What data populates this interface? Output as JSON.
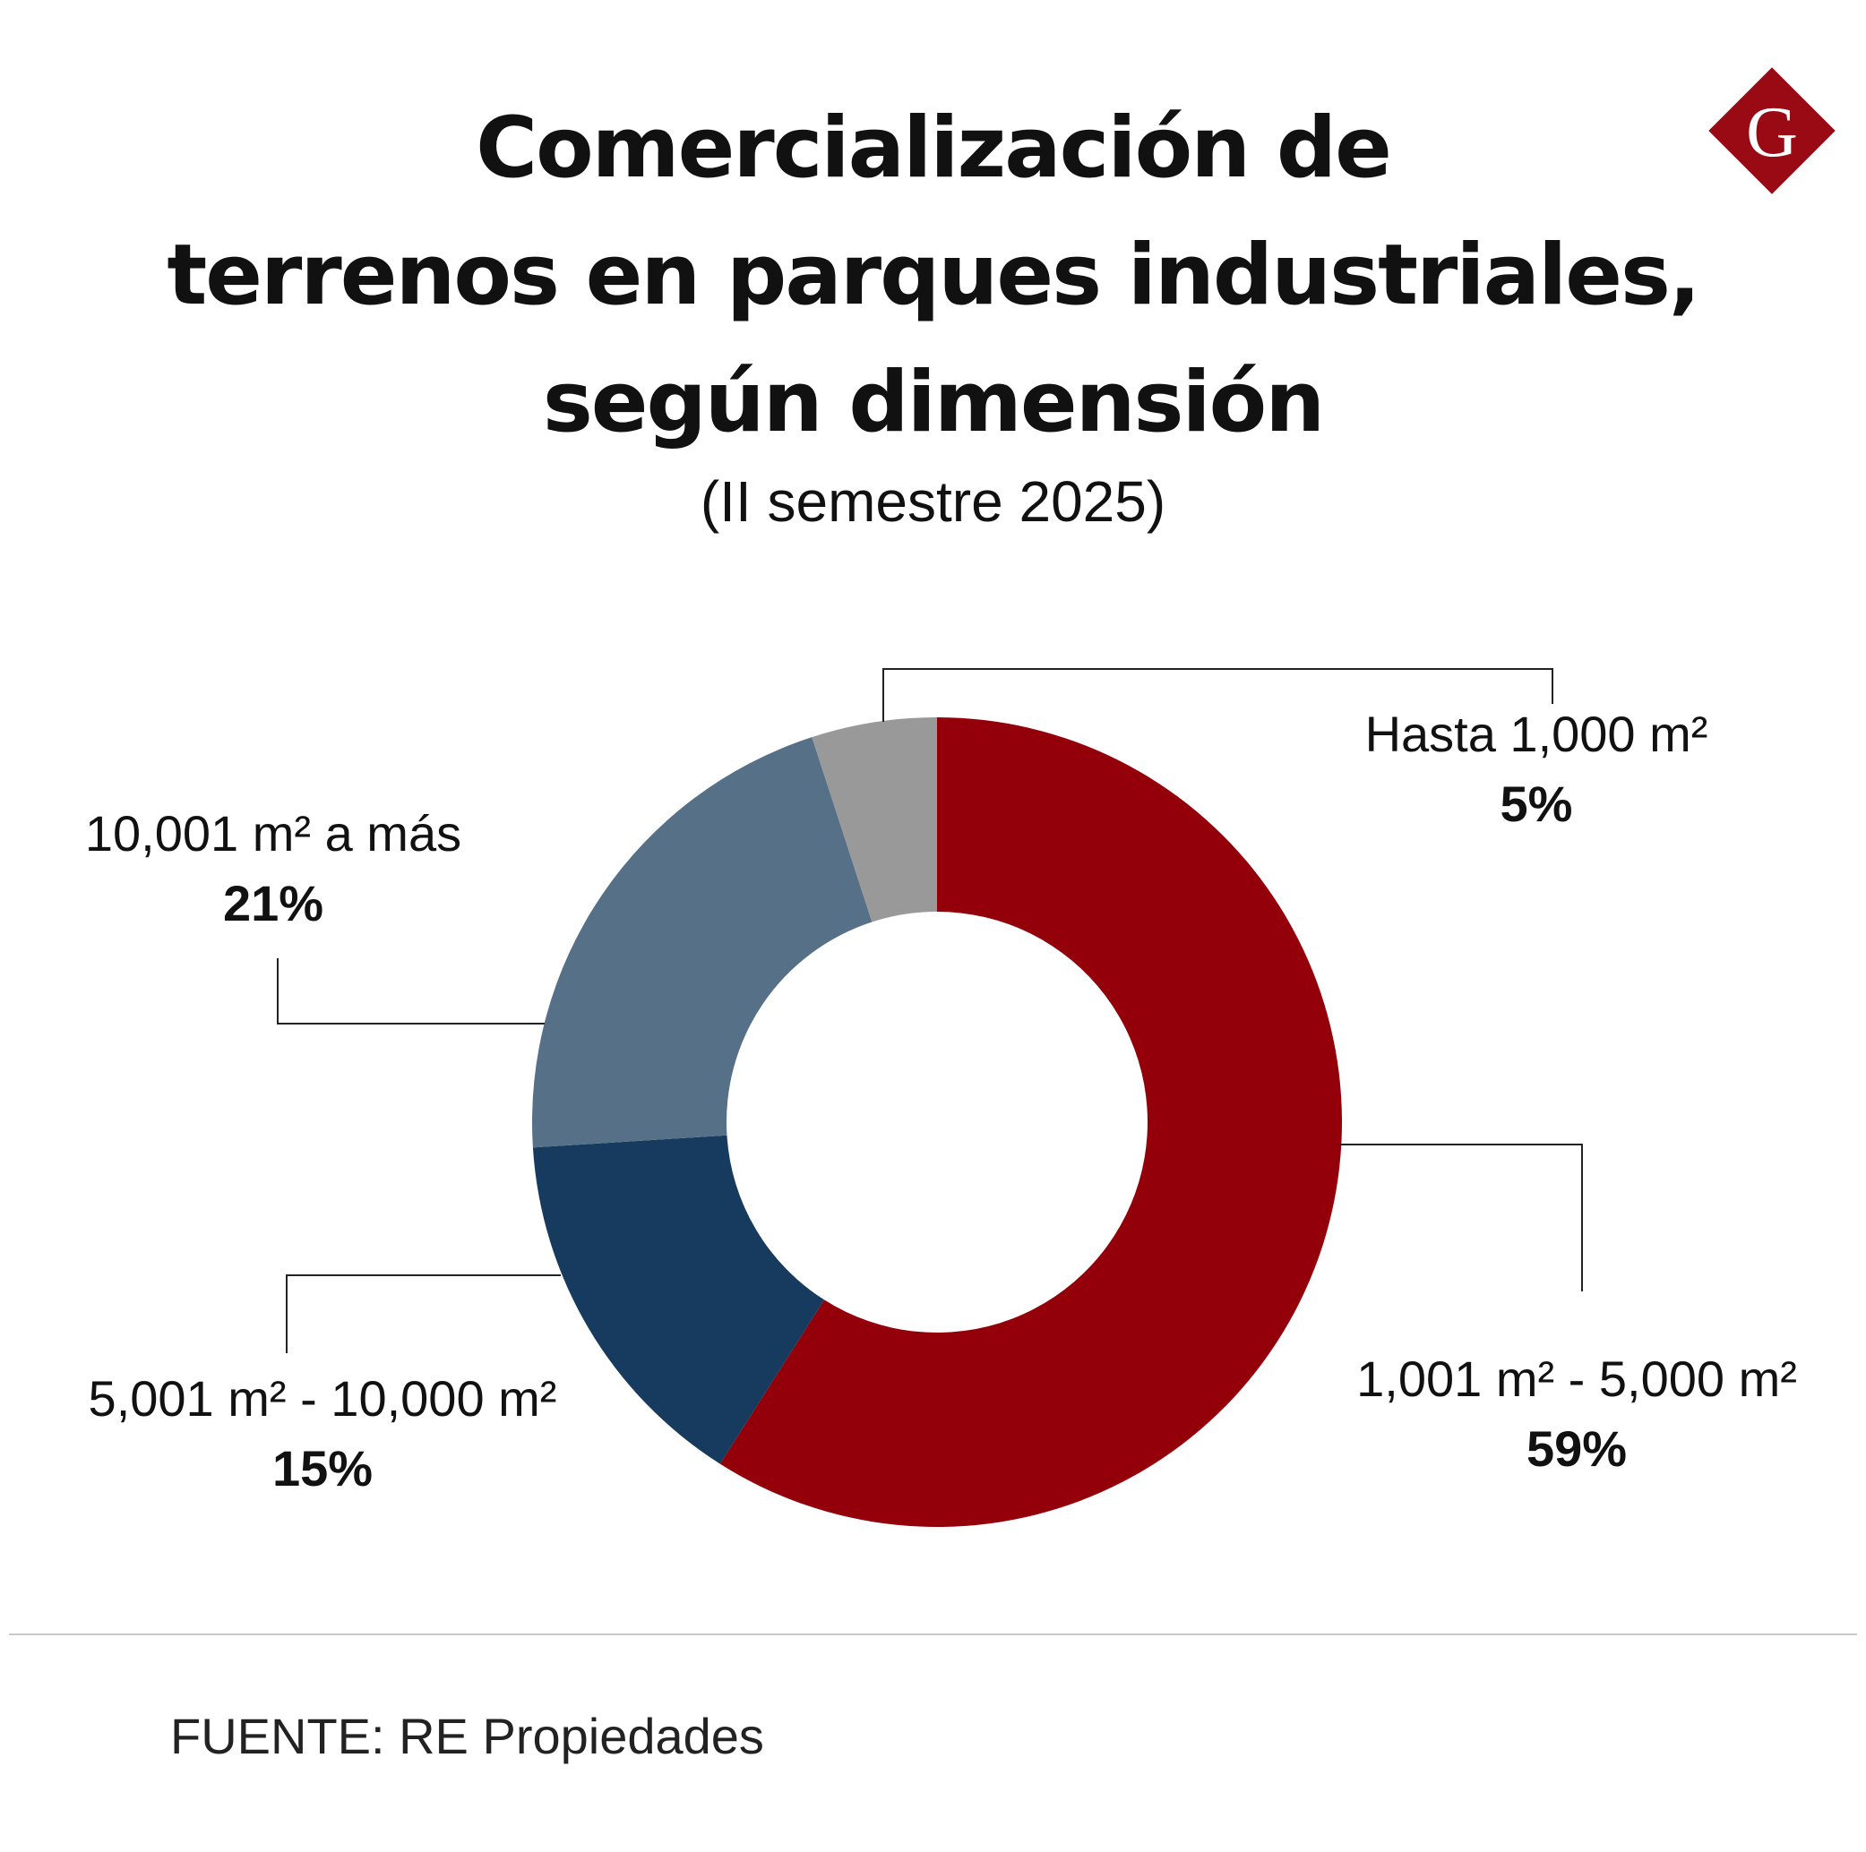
{
  "title_lines": [
    "Comercialización de",
    "terrenos en parques industriales,",
    "según dimensión"
  ],
  "subtitle": "(II semestre 2025)",
  "logo": {
    "letter": "G",
    "color": "#9a0a14",
    "icon": "diamond-g-logo"
  },
  "chart_data": {
    "type": "pie",
    "variant": "donut",
    "title": "Comercialización de terrenos en parques industriales, según dimensión",
    "subtitle": "(II semestre 2025)",
    "slices": [
      {
        "label": "1,001 m² - 5,000 m²",
        "value": 59,
        "pct_label": "59%",
        "color": "#94000a"
      },
      {
        "label": "5,001 m² - 10,000 m²",
        "value": 15,
        "pct_label": "15%",
        "color": "#173b5e"
      },
      {
        "label": "10,001 m²  a más",
        "value": 21,
        "pct_label": "21%",
        "color": "#557087"
      },
      {
        "label": "Hasta 1,000 m²",
        "value": 5,
        "pct_label": "5%",
        "color": "#999999"
      }
    ]
  },
  "source": "FUENTE: RE Propiedades"
}
